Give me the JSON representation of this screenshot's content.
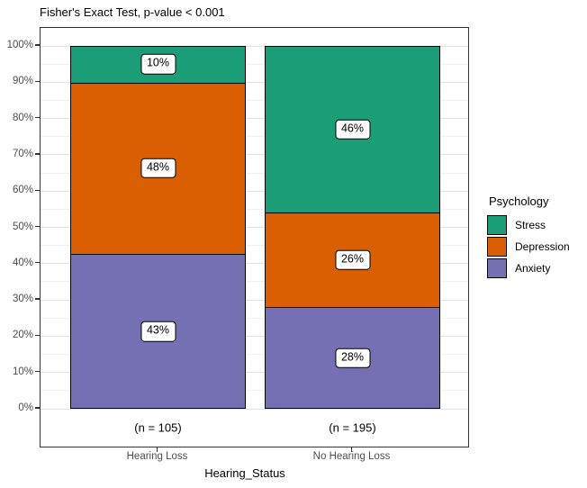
{
  "title": "Fisher's Exact Test, p-value < 0.001",
  "chart_data": {
    "type": "bar",
    "stacked": true,
    "position": "fill",
    "title": "Fisher's Exact Test, p-value < 0.001",
    "xlabel": "Hearing_Status",
    "ylabel": "",
    "categories": [
      "Hearing Loss",
      "No Hearing Loss"
    ],
    "category_counts": [
      "(n = 105)",
      "(n = 195)"
    ],
    "series": [
      {
        "name": "Stress",
        "color": "#1B9E77",
        "values": [
          10,
          46
        ]
      },
      {
        "name": "Depression",
        "color": "#D95F02",
        "values": [
          48,
          26
        ]
      },
      {
        "name": "Anxiety",
        "color": "#7570B3",
        "values": [
          43,
          28
        ]
      }
    ],
    "bar_labels": [
      [
        "10%",
        "48%",
        "43%"
      ],
      [
        "46%",
        "26%",
        "28%"
      ]
    ],
    "y_ticks": [
      "0%",
      "10%",
      "20%",
      "30%",
      "40%",
      "50%",
      "60%",
      "70%",
      "80%",
      "90%",
      "100%"
    ],
    "ylim": [
      0,
      100
    ],
    "grid": "major and minor horizontal gridlines",
    "legend_title": "Psychology",
    "legend_position": "right",
    "panel_border_color": "#333333",
    "axis_text_color": "#4d4d4d"
  }
}
